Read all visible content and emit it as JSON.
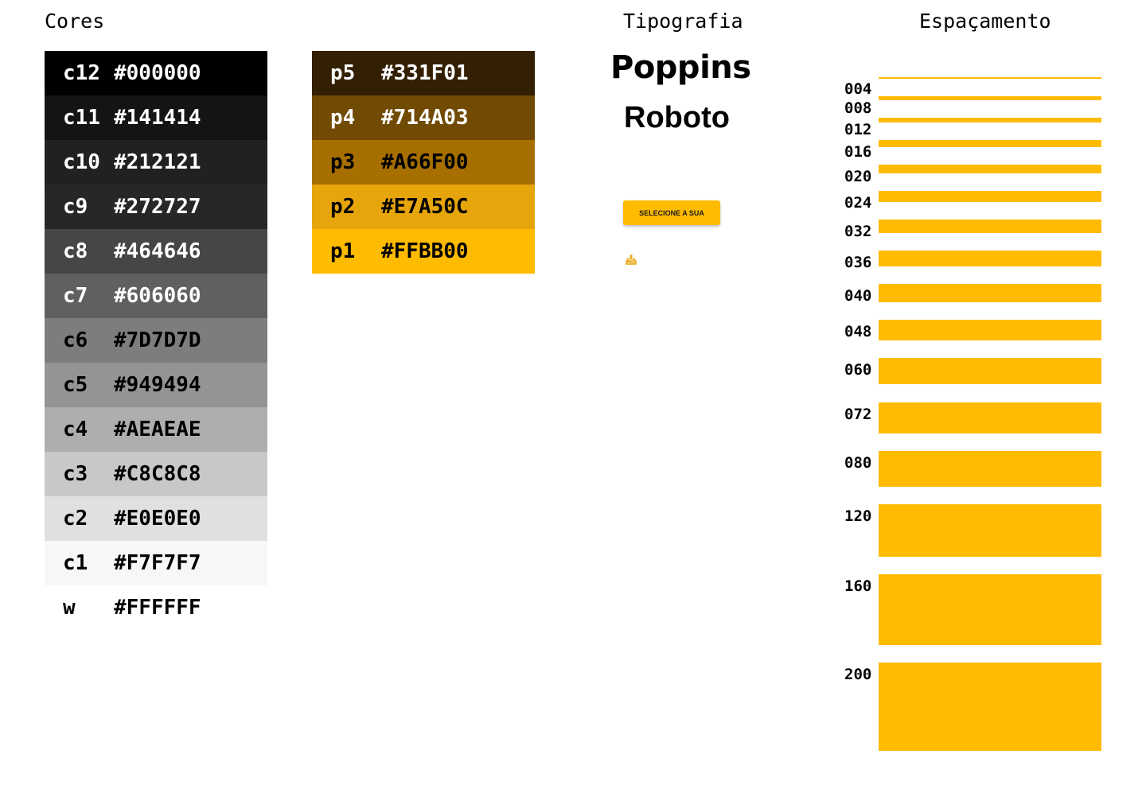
{
  "sections": {
    "colors_title": "Cores",
    "typography_title": "Tipografia",
    "spacing_title": "Espaçamento"
  },
  "grays": [
    {
      "code": "c12",
      "hex": "#000000",
      "text_color": "#FFFFFF"
    },
    {
      "code": "c11",
      "hex": "#141414",
      "text_color": "#FFFFFF"
    },
    {
      "code": "c10",
      "hex": "#212121",
      "text_color": "#FFFFFF"
    },
    {
      "code": "c9",
      "hex": "#272727",
      "text_color": "#FFFFFF"
    },
    {
      "code": "c8",
      "hex": "#464646",
      "text_color": "#FFFFFF"
    },
    {
      "code": "c7",
      "hex": "#606060",
      "text_color": "#FFFFFF"
    },
    {
      "code": "c6",
      "hex": "#7D7D7D",
      "text_color": "#000000"
    },
    {
      "code": "c5",
      "hex": "#949494",
      "text_color": "#000000"
    },
    {
      "code": "c4",
      "hex": "#AEAEAE",
      "text_color": "#000000"
    },
    {
      "code": "c3",
      "hex": "#C8C8C8",
      "text_color": "#000000"
    },
    {
      "code": "c2",
      "hex": "#E0E0E0",
      "text_color": "#000000"
    },
    {
      "code": "c1",
      "hex": "#F7F7F7",
      "text_color": "#000000"
    },
    {
      "code": "w",
      "hex": "#FFFFFF",
      "text_color": "#000000"
    }
  ],
  "primaries": [
    {
      "code": "p5",
      "hex": "#331F01",
      "text_color": "#FFFFFF"
    },
    {
      "code": "p4",
      "hex": "#714A03",
      "text_color": "#FFFFFF"
    },
    {
      "code": "p3",
      "hex": "#A66F00",
      "text_color": "#000000"
    },
    {
      "code": "p2",
      "hex": "#E7A50C",
      "text_color": "#000000"
    },
    {
      "code": "p1",
      "hex": "#FFBB00",
      "text_color": "#000000"
    }
  ],
  "typography": {
    "fonts": [
      "Poppins",
      "Roboto"
    ],
    "button_label": "SELECIONE A SUA",
    "sample_icon": "cake-icon",
    "accent": "#FFBB00"
  },
  "spacing": {
    "accent": "#FFBB00",
    "labels": [
      "004",
      "008",
      "012",
      "016",
      "020",
      "024",
      "032",
      "036",
      "040",
      "048",
      "060",
      "072",
      "080",
      "120",
      "160",
      "200"
    ],
    "steps": [
      4,
      8,
      12,
      16,
      20,
      24,
      32,
      36,
      40,
      48,
      60,
      72,
      80,
      120,
      160,
      200
    ]
  }
}
